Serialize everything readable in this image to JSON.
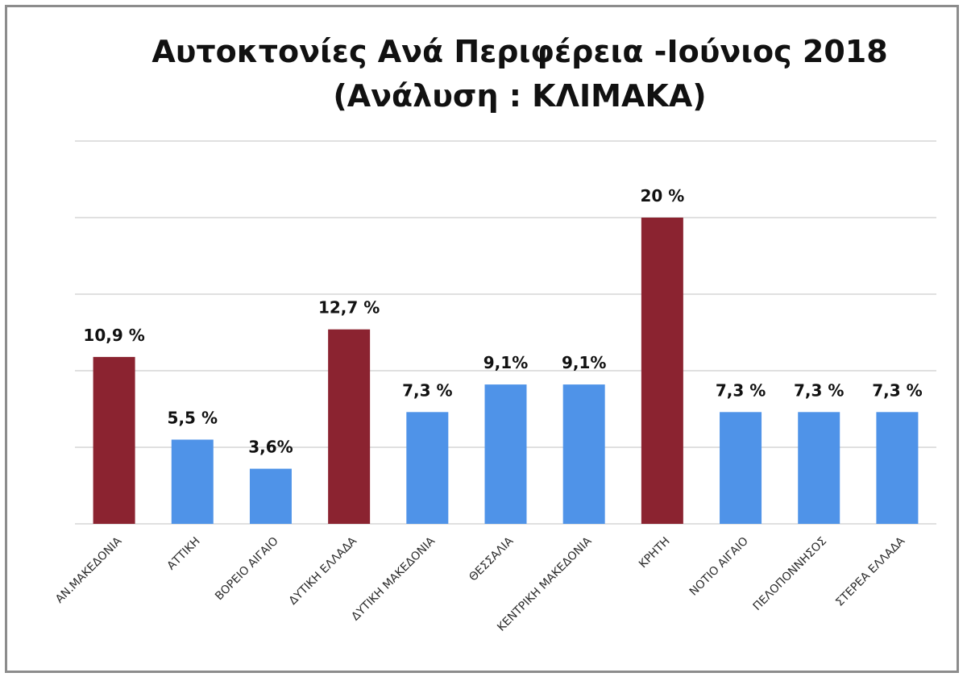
{
  "chart_data": {
    "type": "bar",
    "title": [
      "Αυτοκτονίες Ανά Περιφέρεια -Ιούνιος 2018",
      "(Ανάλυση : ΚΛΙΜΑΚΑ)"
    ],
    "categories": [
      "ΑΝ.ΜΑΚΕΔΟΝΙΑ",
      "ΑΤΤΙΚΗ",
      "ΒΟΡΕΙΟ ΑΙΓΑΙΟ",
      "ΔΥΤΙΚΗ ΕΛΛΑΔΑ",
      "ΔΥΤΙΚΗ ΜΑΚΕΔΟΝΙΑ",
      "ΘΕΣΣΑΛΙΑ",
      "ΚΕΝΤΡΙΚΗ ΜΑΚΕΔΟΝΙΑ",
      "ΚΡΗΤΗ",
      "ΝΟΤΙΟ ΑΙΓΑΙΟ",
      "ΠΕΛΟΠΟΝΝΗΣΟΣ",
      "ΣΤΕΡΕΑ ΕΛΛΑΔΑ"
    ],
    "values": [
      10.9,
      5.5,
      3.6,
      12.7,
      7.3,
      9.1,
      9.1,
      20,
      7.3,
      7.3,
      7.3
    ],
    "data_labels": [
      "10,9 %",
      "5,5 %",
      "3,6%",
      "12,7 %",
      "7,3 %",
      "9,1%",
      "9,1%",
      "20 %",
      "7,3 %",
      "7,3 %",
      "7,3 %"
    ],
    "highlighted": [
      true,
      false,
      false,
      true,
      false,
      false,
      false,
      true,
      false,
      false,
      false
    ],
    "colors": {
      "highlight": "#8b2330",
      "normal": "#4f93e8"
    },
    "ylim": [
      0,
      25
    ],
    "gridline_values": [
      0,
      5,
      10,
      15,
      20,
      25
    ],
    "grid": true,
    "legend": false,
    "xlabel": "",
    "ylabel": ""
  }
}
